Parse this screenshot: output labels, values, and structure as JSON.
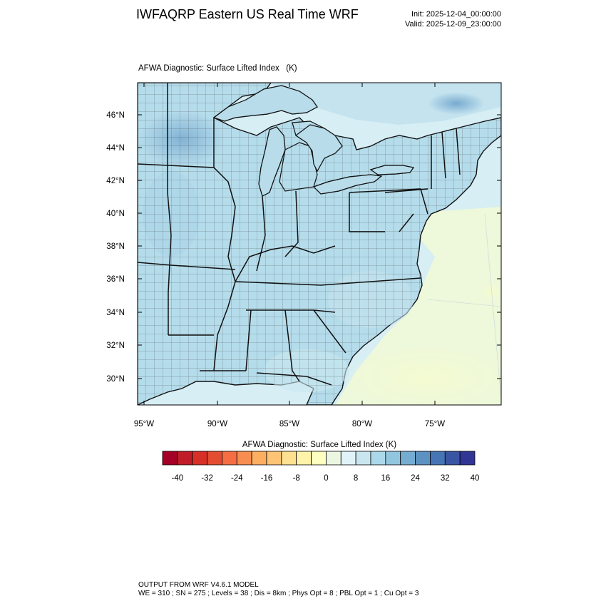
{
  "header": {
    "title": "IWFAQRP Eastern US Real Time WRF",
    "init": "Init: 2025-12-04_00:00:00",
    "valid": "Valid: 2025-12-09_23:00:00"
  },
  "map": {
    "subtitle": "AFWA Diagnostic: Surface Lifted Index   (K)",
    "field": "Surface Lifted Index",
    "projection": "lambert-conformal",
    "region": "Eastern United States",
    "lat_ticks": [
      "46°N",
      "44°N",
      "42°N",
      "40°N",
      "38°N",
      "36°N",
      "34°N",
      "32°N",
      "30°N"
    ],
    "lon_ticks": [
      "95°W",
      "90°W",
      "85°W",
      "80°W",
      "75°W"
    ],
    "ocean_color": "#d6eef4",
    "land_color": "#b5dceb",
    "boundary_color": "#111111"
  },
  "colorbar": {
    "title": "AFWA Diagnostic: Surface Lifted Index  (K)",
    "colors": [
      "#a50026",
      "#c01d28",
      "#d73027",
      "#e44c31",
      "#f46d43",
      "#f88d52",
      "#fdae61",
      "#fdc475",
      "#fee090",
      "#fff2a9",
      "#ffffbf",
      "#ecf7e2",
      "#e0f3f8",
      "#c9e6f0",
      "#abd9e9",
      "#92c5de",
      "#74add1",
      "#5d91c2",
      "#4575b4",
      "#3a55a3",
      "#313695"
    ],
    "tick_labels": [
      "-40",
      "-32",
      "-24",
      "-16",
      "-8",
      "0",
      "8",
      "16",
      "24",
      "32",
      "40"
    ]
  },
  "footer": {
    "line1": "OUTPUT FROM WRF V4.6.1 MODEL",
    "line2": "WE = 310 ; SN = 275 ; Levels = 38 ; Dis = 8km ; Phys Opt = 8 ; PBL Opt = 1 ; Cu Opt = 3"
  }
}
